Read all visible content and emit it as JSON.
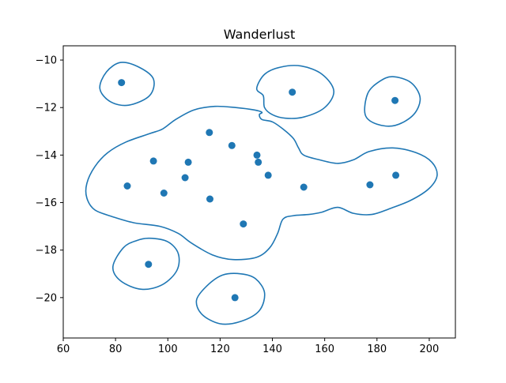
{
  "chart_data": {
    "type": "scatter",
    "title": "Wanderlust",
    "xlabel": "",
    "ylabel": "",
    "xlim": [
      60,
      210
    ],
    "ylim": [
      -21.7,
      -9.4
    ],
    "x_ticks": [
      60,
      80,
      100,
      120,
      140,
      160,
      180,
      200
    ],
    "y_ticks": [
      -10,
      -12,
      -14,
      -16,
      -18,
      -20
    ],
    "grid": false,
    "colors": {
      "series": "#1f77b4",
      "axes": "#000000",
      "background": "#ffffff"
    },
    "series": [
      {
        "values": [
          [
            82.3,
            -10.95
          ],
          [
            147.6,
            -11.35
          ],
          [
            186.9,
            -11.7
          ],
          [
            115.9,
            -13.05
          ],
          [
            124.5,
            -13.6
          ],
          [
            134.1,
            -14.0
          ],
          [
            134.6,
            -14.3
          ],
          [
            94.5,
            -14.25
          ],
          [
            107.8,
            -14.3
          ],
          [
            106.6,
            -14.95
          ],
          [
            138.4,
            -14.85
          ],
          [
            84.5,
            -15.3
          ],
          [
            98.5,
            -15.6
          ],
          [
            116.1,
            -15.85
          ],
          [
            152.0,
            -15.35
          ],
          [
            177.3,
            -15.25
          ],
          [
            187.2,
            -14.85
          ],
          [
            128.9,
            -16.9
          ],
          [
            92.6,
            -18.6
          ],
          [
            125.7,
            -20.0
          ]
        ]
      }
    ],
    "contours": [
      [
        [
          82,
          -10.1
        ],
        [
          89,
          -10.3
        ],
        [
          94.5,
          -10.8
        ],
        [
          93,
          -11.5
        ],
        [
          85,
          -11.9
        ],
        [
          78,
          -11.75
        ],
        [
          74,
          -11.2
        ],
        [
          76.5,
          -10.5
        ]
      ],
      [
        [
          137,
          -10.6
        ],
        [
          143,
          -10.3
        ],
        [
          151,
          -10.25
        ],
        [
          159,
          -10.6
        ],
        [
          163.5,
          -11.3
        ],
        [
          160,
          -12.0
        ],
        [
          152,
          -12.4
        ],
        [
          145,
          -12.45
        ],
        [
          140,
          -12.3
        ],
        [
          137,
          -12.0
        ],
        [
          136.5,
          -11.5
        ],
        [
          134,
          -11.2
        ]
      ],
      [
        [
          186,
          -10.7
        ],
        [
          193,
          -10.95
        ],
        [
          196.5,
          -11.6
        ],
        [
          194,
          -12.3
        ],
        [
          187,
          -12.75
        ],
        [
          180,
          -12.7
        ],
        [
          175.5,
          -12.3
        ],
        [
          176.5,
          -11.4
        ],
        [
          181,
          -10.9
        ]
      ],
      [
        [
          126,
          -12.0
        ],
        [
          133,
          -12.1
        ],
        [
          136,
          -12.2
        ],
        [
          135,
          -12.3
        ],
        [
          136,
          -12.5
        ],
        [
          140,
          -12.6
        ],
        [
          144,
          -12.9
        ],
        [
          148,
          -13.3
        ],
        [
          150,
          -13.7
        ],
        [
          152,
          -14.0
        ],
        [
          158,
          -14.2
        ],
        [
          165,
          -14.35
        ],
        [
          171,
          -14.2
        ],
        [
          177,
          -13.85
        ],
        [
          186,
          -13.7
        ],
        [
          195,
          -13.9
        ],
        [
          201,
          -14.3
        ],
        [
          203,
          -14.85
        ],
        [
          200,
          -15.4
        ],
        [
          193,
          -15.9
        ],
        [
          185,
          -16.25
        ],
        [
          178,
          -16.5
        ],
        [
          171,
          -16.45
        ],
        [
          165,
          -16.2
        ],
        [
          159,
          -16.4
        ],
        [
          154,
          -16.5
        ],
        [
          148,
          -16.55
        ],
        [
          144,
          -16.7
        ],
        [
          142,
          -17.3
        ],
        [
          139,
          -17.9
        ],
        [
          134,
          -18.3
        ],
        [
          125,
          -18.4
        ],
        [
          117,
          -18.2
        ],
        [
          109,
          -17.7
        ],
        [
          104,
          -17.3
        ],
        [
          97,
          -17.0
        ],
        [
          87,
          -16.85
        ],
        [
          79,
          -16.6
        ],
        [
          72,
          -16.3
        ],
        [
          69,
          -15.8
        ],
        [
          69,
          -15.2
        ],
        [
          72,
          -14.5
        ],
        [
          77,
          -13.9
        ],
        [
          84,
          -13.45
        ],
        [
          93,
          -13.1
        ],
        [
          98,
          -12.9
        ],
        [
          103,
          -12.5
        ],
        [
          110,
          -12.1
        ],
        [
          118,
          -11.95
        ]
      ],
      [
        [
          93,
          -17.5
        ],
        [
          100,
          -17.65
        ],
        [
          104,
          -18.15
        ],
        [
          103.5,
          -18.85
        ],
        [
          98,
          -19.45
        ],
        [
          90,
          -19.65
        ],
        [
          82,
          -19.3
        ],
        [
          79,
          -18.7
        ],
        [
          83,
          -17.9
        ],
        [
          88,
          -17.6
        ]
      ],
      [
        [
          128,
          -19.0
        ],
        [
          133.5,
          -19.2
        ],
        [
          137,
          -19.8
        ],
        [
          135,
          -20.55
        ],
        [
          128,
          -21.0
        ],
        [
          120,
          -21.1
        ],
        [
          113,
          -20.7
        ],
        [
          111,
          -20.1
        ],
        [
          115,
          -19.5
        ],
        [
          121,
          -19.05
        ]
      ]
    ]
  }
}
